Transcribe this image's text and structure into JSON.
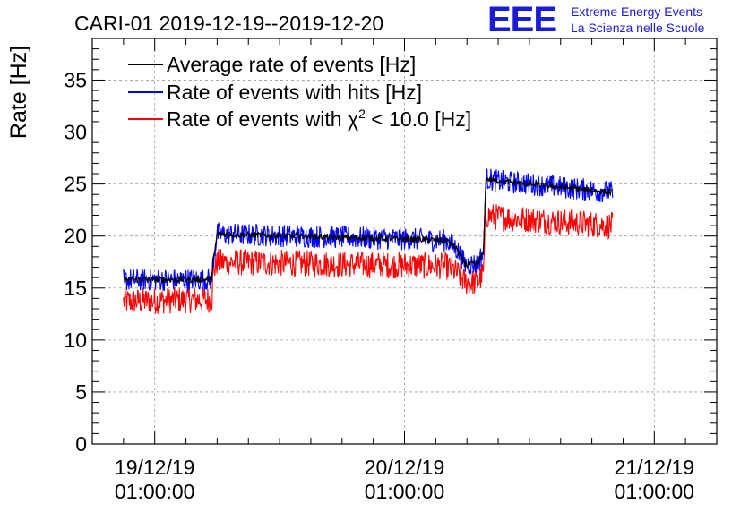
{
  "brand": {
    "logo": "EEE",
    "line1": "Extreme Energy Events",
    "line2": "La Scienza nelle Scuole",
    "color": "#1a1adb"
  },
  "chart_data": {
    "type": "line",
    "title": "CARI-01 2019-12-19--2019-12-20",
    "xlabel": "",
    "ylabel": "Rate [Hz]",
    "ylim": [
      0,
      39
    ],
    "xlim": [
      -6,
      54
    ],
    "x_unit": "hours since 19/12/19 01:00:00",
    "grid": true,
    "legend_position": "top-left",
    "yticks": [
      0,
      5,
      10,
      15,
      20,
      25,
      30,
      35
    ],
    "xticks": [
      {
        "x": 0,
        "date": "19/12/19",
        "time": "01:00:00"
      },
      {
        "x": 24,
        "date": "20/12/19",
        "time": "01:00:00"
      },
      {
        "x": 48,
        "date": "21/12/19",
        "time": "01:00:00"
      }
    ],
    "legend": [
      {
        "label": "Average rate of events [Hz]",
        "color": "#000000"
      },
      {
        "label": "Rate of events with hits [Hz]",
        "color": "#0000ff"
      },
      {
        "label": "Rate of events with χ² < 10.0 [Hz]",
        "label_main": "Rate of events with χ",
        "label_sup": "2",
        "label_tail": " < 10.0 [Hz]",
        "color": "#ff0000"
      }
    ],
    "series": [
      {
        "name": "Average rate of events [Hz]",
        "color": "#000000",
        "noise": 0.3,
        "x": [
          -3,
          5.5,
          5.6,
          6,
          28,
          29,
          29.8,
          31,
          31.6,
          31.8,
          33,
          44
        ],
        "values": [
          15.8,
          15.8,
          17.5,
          20.2,
          19.6,
          18.8,
          17.3,
          17.3,
          18.5,
          25.5,
          25.3,
          24.2
        ]
      },
      {
        "name": "Rate of events with hits [Hz]",
        "color": "#0000ff",
        "noise": 1.1,
        "x": [
          -3,
          5.5,
          5.6,
          6,
          28,
          29,
          29.8,
          31,
          31.6,
          31.8,
          33,
          44
        ],
        "values": [
          15.8,
          15.8,
          17.5,
          20.2,
          19.6,
          18.8,
          17.3,
          17.3,
          18.5,
          25.5,
          25.3,
          24.2
        ]
      },
      {
        "name": "Rate of events with χ² < 10.0 [Hz]",
        "color": "#ff0000",
        "noise": 1.3,
        "x": [
          -3,
          5.5,
          5.6,
          6,
          28,
          29,
          29.8,
          31,
          31.6,
          31.8,
          33,
          44
        ],
        "values": [
          13.7,
          13.9,
          16.5,
          17.5,
          17.1,
          16.5,
          15.6,
          15.5,
          16.5,
          22,
          21.8,
          21
        ]
      }
    ]
  }
}
